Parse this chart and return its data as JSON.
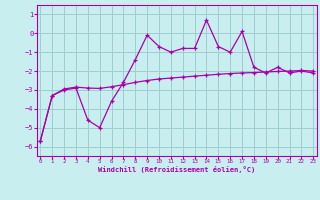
{
  "xlabel": "Windchill (Refroidissement éolien,°C)",
  "x": [
    0,
    1,
    2,
    3,
    4,
    5,
    6,
    7,
    8,
    9,
    10,
    11,
    12,
    13,
    14,
    15,
    16,
    17,
    18,
    19,
    20,
    21,
    22,
    23
  ],
  "y_jagged": [
    -5.7,
    -3.3,
    -3.0,
    -2.9,
    -4.6,
    -5.0,
    -3.6,
    -2.6,
    -1.4,
    -0.1,
    -0.7,
    -1.0,
    -0.8,
    -0.8,
    0.7,
    -0.7,
    -1.0,
    0.1,
    -1.8,
    -2.1,
    -1.8,
    -2.1,
    -2.0,
    -2.1
  ],
  "y_smooth": [
    -5.7,
    -3.3,
    -2.95,
    -2.85,
    -2.9,
    -2.92,
    -2.83,
    -2.72,
    -2.6,
    -2.5,
    -2.42,
    -2.37,
    -2.32,
    -2.27,
    -2.22,
    -2.17,
    -2.13,
    -2.1,
    -2.08,
    -2.05,
    -2.02,
    -2.0,
    -1.97,
    -2.0
  ],
  "line_color": "#aa00aa",
  "bg_color": "#c8eef0",
  "grid_color": "#9ecece",
  "ylim": [
    -6.5,
    1.5
  ],
  "xlim": [
    -0.3,
    23.3
  ],
  "yticks": [
    1,
    0,
    -1,
    -2,
    -3,
    -4,
    -5,
    -6
  ],
  "xticks": [
    0,
    1,
    2,
    3,
    4,
    5,
    6,
    7,
    8,
    9,
    10,
    11,
    12,
    13,
    14,
    15,
    16,
    17,
    18,
    19,
    20,
    21,
    22,
    23
  ]
}
